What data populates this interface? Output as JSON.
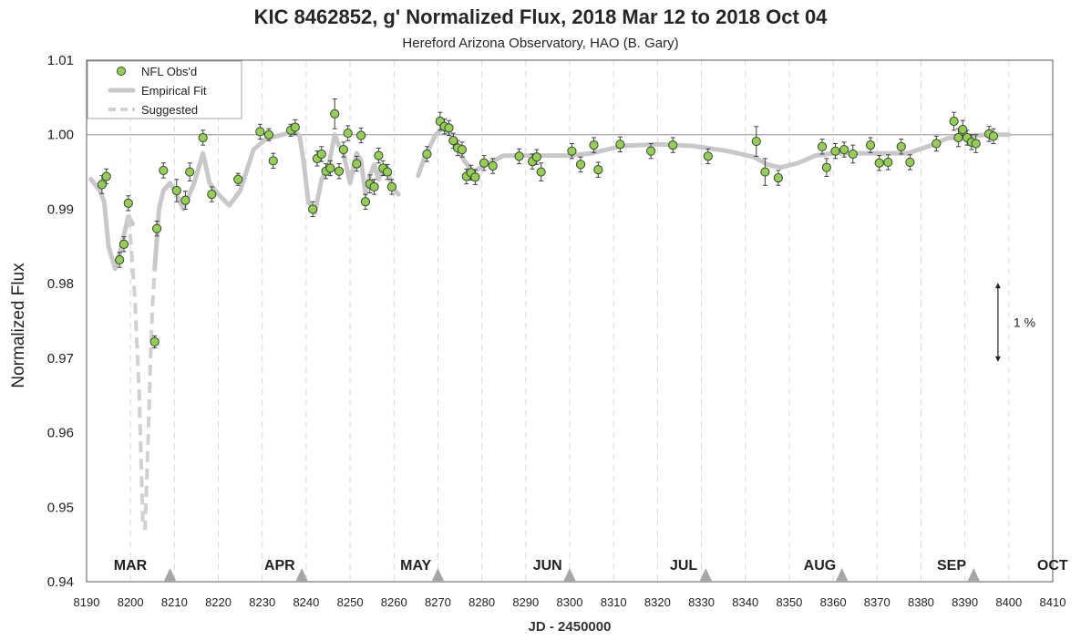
{
  "chart_data": {
    "type": "scatter",
    "title": "KIC 8462852, g' Normalized Flux, 2018 Mar 12 to 2018 Oct 04",
    "subtitle": "Hereford Arizona Observatory, HAO (B. Gary)",
    "xlabel": "JD - 2450000",
    "ylabel": "Normalized Flux",
    "xlim": [
      8190,
      8410
    ],
    "ylim": [
      0.94,
      1.01
    ],
    "xticks": [
      8190,
      8200,
      8210,
      8220,
      8230,
      8240,
      8250,
      8260,
      8270,
      8280,
      8290,
      8300,
      8310,
      8320,
      8330,
      8340,
      8350,
      8360,
      8370,
      8380,
      8390,
      8400,
      8410
    ],
    "yticks": [
      0.94,
      0.95,
      0.96,
      0.97,
      0.98,
      0.99,
      1.0,
      1.01
    ],
    "ytick_labels": [
      "0.94",
      "0.95",
      "0.96",
      "0.97",
      "0.98",
      "0.99",
      "1.00",
      "1.01"
    ],
    "grid": "vertical dashed",
    "reference_line": 1.0,
    "legend": {
      "position": "top-left",
      "entries": [
        "NFL Obs'd",
        "Empirical Fit",
        "Suggested"
      ]
    },
    "month_labels": [
      {
        "label": "MAR",
        "x": 8190
      },
      {
        "label": "APR",
        "x": 8224
      },
      {
        "label": "MAY",
        "x": 8255
      },
      {
        "label": "JUN",
        "x": 8285
      },
      {
        "label": "JUL",
        "x": 8316
      },
      {
        "label": "AUG",
        "x": 8347
      },
      {
        "label": "SEP",
        "x": 8377
      },
      {
        "label": "OCT",
        "x": 8400
      }
    ],
    "month_markers": [
      8209,
      8239,
      8270,
      8300,
      8331,
      8362,
      8392
    ],
    "scale_annotation": {
      "label": "1 %",
      "x": 8394,
      "y_from": 0.98,
      "y_to": 0.97
    },
    "series": [
      {
        "name": "NFL Obs'd",
        "color": "#92d050",
        "points": [
          [
            8193.5,
            0.9933,
            0.0012
          ],
          [
            8194.5,
            0.9944,
            0.001
          ],
          [
            8197.5,
            0.9832,
            0.001
          ],
          [
            8198.5,
            0.9853,
            0.001
          ],
          [
            8199.5,
            0.9908,
            0.001
          ],
          [
            8205.5,
            0.9722,
            0.0008
          ],
          [
            8206,
            0.9874,
            0.001
          ],
          [
            8207.5,
            0.9952,
            0.001
          ],
          [
            8210.5,
            0.9925,
            0.0015
          ],
          [
            8212.5,
            0.9912,
            0.0012
          ],
          [
            8213.5,
            0.995,
            0.0012
          ],
          [
            8216.5,
            0.9996,
            0.001
          ],
          [
            8218.5,
            0.992,
            0.001
          ],
          [
            8224.5,
            0.994,
            0.0008
          ],
          [
            8229.5,
            1.0004,
            0.001
          ],
          [
            8231.5,
            1.0,
            0.0008
          ],
          [
            8232.5,
            0.9965,
            0.001
          ],
          [
            8236.5,
            1.0006,
            0.0008
          ],
          [
            8237.5,
            1.001,
            0.001
          ],
          [
            8241.5,
            0.99,
            0.001
          ],
          [
            8242.5,
            0.9968,
            0.001
          ],
          [
            8243.5,
            0.9974,
            0.001
          ],
          [
            8244.5,
            0.9951,
            0.001
          ],
          [
            8245.5,
            0.9955,
            0.001
          ],
          [
            8246.5,
            1.0028,
            0.002
          ],
          [
            8247.5,
            0.9951,
            0.001
          ],
          [
            8248.5,
            0.998,
            0.001
          ],
          [
            8249.5,
            1.0002,
            0.001
          ],
          [
            8251.5,
            0.9961,
            0.001
          ],
          [
            8252.5,
            0.9999,
            0.001
          ],
          [
            8253.5,
            0.991,
            0.001
          ],
          [
            8254.5,
            0.9934,
            0.0012
          ],
          [
            8255.5,
            0.993,
            0.001
          ],
          [
            8256.5,
            0.9972,
            0.001
          ],
          [
            8257.5,
            0.9955,
            0.001
          ],
          [
            8258.5,
            0.995,
            0.001
          ],
          [
            8259.5,
            0.993,
            0.001
          ],
          [
            8267.5,
            0.9974,
            0.001
          ],
          [
            8270.5,
            1.0018,
            0.0012
          ],
          [
            8271.5,
            1.0011,
            0.001
          ],
          [
            8272.5,
            1.0009,
            0.001
          ],
          [
            8273.5,
            0.9992,
            0.001
          ],
          [
            8274.5,
            0.9982,
            0.001
          ],
          [
            8275.5,
            0.998,
            0.001
          ],
          [
            8276.5,
            0.9944,
            0.001
          ],
          [
            8277.5,
            0.9949,
            0.001
          ],
          [
            8278.5,
            0.9943,
            0.001
          ],
          [
            8280.5,
            0.9962,
            0.001
          ],
          [
            8282.5,
            0.9958,
            0.001
          ],
          [
            8288.5,
            0.9971,
            0.001
          ],
          [
            8291.5,
            0.9964,
            0.001
          ],
          [
            8292.5,
            0.997,
            0.001
          ],
          [
            8293.5,
            0.995,
            0.0012
          ],
          [
            8300.5,
            0.9978,
            0.001
          ],
          [
            8302.5,
            0.996,
            0.001
          ],
          [
            8305.5,
            0.9986,
            0.001
          ],
          [
            8306.5,
            0.9953,
            0.001
          ],
          [
            8311.5,
            0.9987,
            0.001
          ],
          [
            8318.5,
            0.9978,
            0.001
          ],
          [
            8323.5,
            0.9986,
            0.001
          ],
          [
            8331.5,
            0.9971,
            0.001
          ],
          [
            8342.5,
            0.9991,
            0.002
          ],
          [
            8344.5,
            0.995,
            0.0018
          ],
          [
            8347.5,
            0.9942,
            0.001
          ],
          [
            8357.5,
            0.9984,
            0.001
          ],
          [
            8358.5,
            0.9956,
            0.0012
          ],
          [
            8360.5,
            0.9978,
            0.001
          ],
          [
            8362.5,
            0.998,
            0.001
          ],
          [
            8364.5,
            0.9974,
            0.0012
          ],
          [
            8368.5,
            0.9986,
            0.001
          ],
          [
            8370.5,
            0.9962,
            0.001
          ],
          [
            8372.5,
            0.9963,
            0.001
          ],
          [
            8375.5,
            0.9984,
            0.001
          ],
          [
            8377.5,
            0.9963,
            0.001
          ],
          [
            8383.5,
            0.9988,
            0.001
          ],
          [
            8387.5,
            1.0018,
            0.0012
          ],
          [
            8388.5,
            0.9996,
            0.0012
          ],
          [
            8389.5,
            1.0007,
            0.0012
          ],
          [
            8390.5,
            0.9996,
            0.001
          ],
          [
            8391.5,
            0.999,
            0.001
          ],
          [
            8392.5,
            0.9988,
            0.0012
          ],
          [
            8395.5,
            1.0001,
            0.001
          ],
          [
            8396.5,
            0.9998,
            0.001
          ]
        ]
      },
      {
        "name": "Empirical Fit",
        "color": "#c8c8c8",
        "segments": [
          [
            [
              8191,
              0.994
            ],
            [
              8193,
              0.9925
            ],
            [
              8194,
              0.991
            ],
            [
              8195,
              0.985
            ],
            [
              8196.5,
              0.982
            ],
            [
              8197.5,
              0.984
            ],
            [
              8199.5,
              0.989
            ],
            [
              8200.5,
              0.988
            ]
          ],
          [
            [
              8205.5,
              0.982
            ],
            [
              8206.5,
              0.99
            ],
            [
              8207.5,
              0.9925
            ],
            [
              8209,
              0.9935
            ],
            [
              8210.5,
              0.992
            ],
            [
              8212,
              0.99
            ],
            [
              8214.5,
              0.9935
            ],
            [
              8216.5,
              0.9975
            ],
            [
              8218,
              0.9935
            ],
            [
              8220,
              0.992
            ],
            [
              8222.5,
              0.9905
            ],
            [
              8225,
              0.9925
            ],
            [
              8228,
              0.998
            ],
            [
              8231,
              0.9995
            ],
            [
              8234,
              0.9999
            ],
            [
              8237,
              1.0004
            ],
            [
              8238.5,
              0.9999
            ],
            [
              8239.5,
              0.996
            ],
            [
              8240.5,
              0.991
            ],
            [
              8242,
              0.9895
            ],
            [
              8243.5,
              0.994
            ],
            [
              8245,
              0.9955
            ],
            [
              8246.5,
              1.0
            ],
            [
              8247.5,
              0.9985
            ],
            [
              8248.5,
              0.9975
            ],
            [
              8250,
              0.9935
            ],
            [
              8251.5,
              0.9975
            ],
            [
              8252.5,
              0.9965
            ],
            [
              8253.5,
              0.992
            ],
            [
              8254.5,
              0.9945
            ],
            [
              8255.5,
              0.996
            ],
            [
              8256.5,
              0.994
            ],
            [
              8257.5,
              0.9958
            ],
            [
              8258.5,
              0.9955
            ],
            [
              8259.5,
              0.993
            ],
            [
              8261,
              0.992
            ]
          ],
          [
            [
              8265.5,
              0.9945
            ],
            [
              8267,
              0.997
            ],
            [
              8269.5,
              1.0
            ],
            [
              8271,
              1.0008
            ],
            [
              8273,
              1.0
            ],
            [
              8274.5,
              0.9985
            ],
            [
              8276,
              0.9965
            ],
            [
              8278,
              0.995
            ],
            [
              8281,
              0.996
            ],
            [
              8285,
              0.9972
            ],
            [
              8292,
              0.9972
            ],
            [
              8300,
              0.9972
            ],
            [
              8305,
              0.9975
            ],
            [
              8312,
              0.9985
            ],
            [
              8320,
              0.9987
            ],
            [
              8328,
              0.9985
            ],
            [
              8336,
              0.9978
            ],
            [
              8342,
              0.997
            ],
            [
              8345,
              0.996
            ],
            [
              8348,
              0.9956
            ],
            [
              8352,
              0.9962
            ],
            [
              8356,
              0.9972
            ],
            [
              8360,
              0.9975
            ],
            [
              8370,
              0.9975
            ],
            [
              8377,
              0.9975
            ],
            [
              8382,
              0.9985
            ],
            [
              8386,
              0.9995
            ],
            [
              8390,
              0.9998
            ],
            [
              8395,
              1.0
            ],
            [
              8400,
              1.0
            ]
          ]
        ]
      },
      {
        "name": "Suggested",
        "color": "#d0d0d0",
        "points": [
          [
            8199.5,
            0.989
          ],
          [
            8200,
            0.986
          ],
          [
            8201,
            0.978
          ],
          [
            8202,
            0.965
          ],
          [
            8202.8,
            0.948
          ],
          [
            8203.3,
            0.947
          ],
          [
            8204,
            0.959
          ],
          [
            8204.5,
            0.969
          ],
          [
            8205,
            0.977
          ],
          [
            8205.5,
            0.982
          ]
        ]
      }
    ]
  }
}
